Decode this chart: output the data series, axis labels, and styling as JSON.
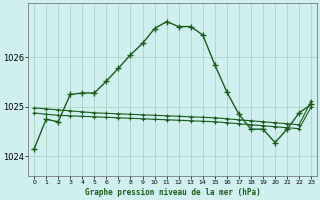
{
  "title": "Graphe pression niveau de la mer (hPa)",
  "background_color": "#cff0ee",
  "grid_color": "#b0d8cc",
  "line_color_main": "#1a5c1a",
  "line_color_flat": "#1a5c1a",
  "xlim": [
    -0.5,
    23.5
  ],
  "ylim": [
    1023.6,
    1027.1
  ],
  "yticks": [
    1024,
    1025,
    1026
  ],
  "xticks": [
    0,
    1,
    2,
    3,
    4,
    5,
    6,
    7,
    8,
    9,
    10,
    11,
    12,
    13,
    14,
    15,
    16,
    17,
    18,
    19,
    20,
    21,
    22,
    23
  ],
  "hours": [
    0,
    1,
    2,
    3,
    4,
    5,
    6,
    7,
    8,
    9,
    10,
    11,
    12,
    13,
    14,
    15,
    16,
    17,
    18,
    19,
    20,
    21,
    22,
    23
  ],
  "main_line": [
    1024.15,
    1024.75,
    1024.7,
    1025.25,
    1025.28,
    1025.28,
    1025.52,
    1025.78,
    1026.05,
    1026.28,
    1026.58,
    1026.72,
    1026.62,
    1026.62,
    1026.45,
    1025.85,
    1025.3,
    1024.85,
    1024.55,
    1024.55,
    1024.28,
    1024.55,
    1024.88,
    1025.05
  ],
  "flat_line1": [
    1024.88,
    1024.85,
    1024.83,
    1024.82,
    1024.81,
    1024.8,
    1024.79,
    1024.78,
    1024.77,
    1024.76,
    1024.75,
    1024.74,
    1024.73,
    1024.72,
    1024.71,
    1024.7,
    1024.68,
    1024.66,
    1024.64,
    1024.62,
    1024.6,
    1024.58,
    1024.56,
    1025.0
  ],
  "flat_line2": [
    1024.98,
    1024.96,
    1024.94,
    1024.92,
    1024.9,
    1024.88,
    1024.87,
    1024.86,
    1024.85,
    1024.84,
    1024.83,
    1024.82,
    1024.81,
    1024.8,
    1024.79,
    1024.78,
    1024.76,
    1024.74,
    1024.72,
    1024.7,
    1024.68,
    1024.66,
    1024.64,
    1025.12
  ]
}
